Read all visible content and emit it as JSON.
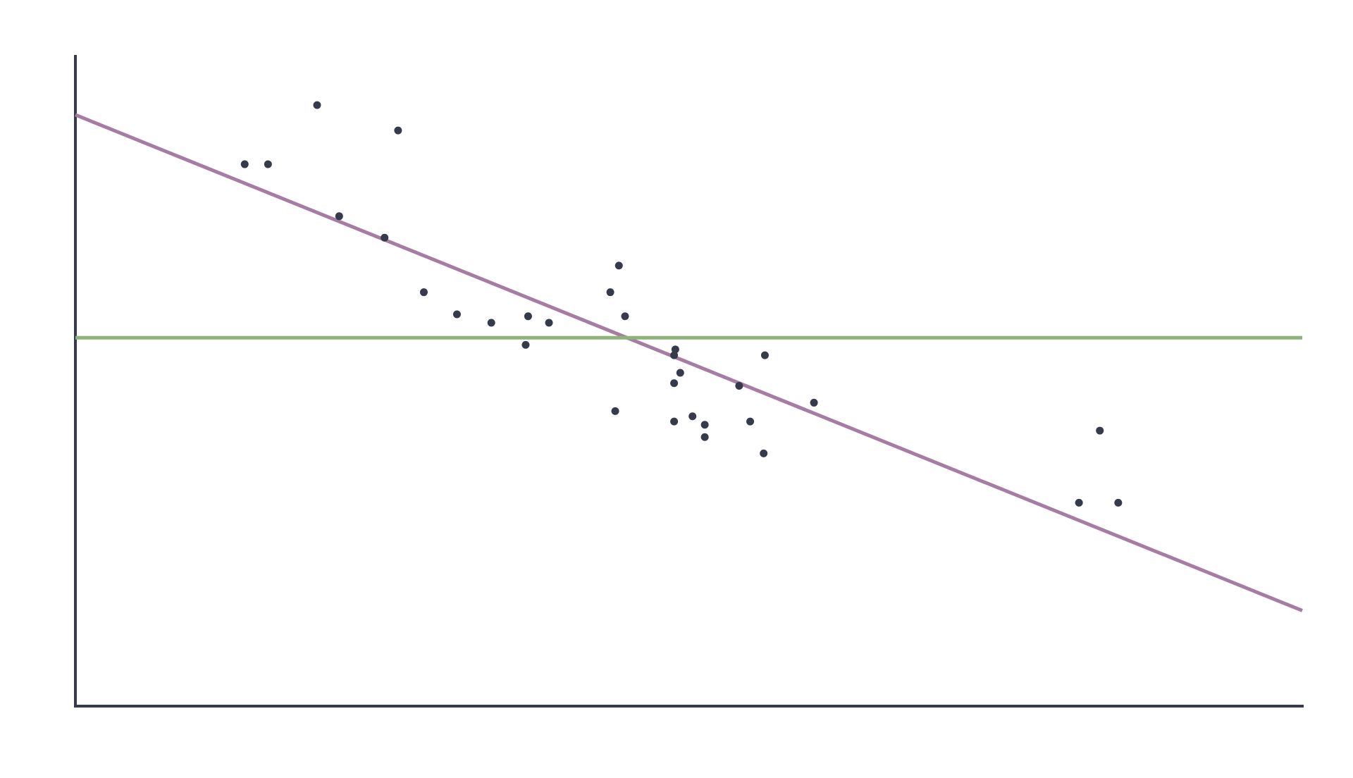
{
  "chart_data": {
    "type": "scatter",
    "title": "",
    "xlabel": "",
    "ylabel": "",
    "xlim": [
      0,
      100
    ],
    "ylim": [
      0,
      100
    ],
    "grid": false,
    "legend": "none",
    "points": [
      {
        "x": 13.8,
        "y": 83.4
      },
      {
        "x": 15.7,
        "y": 83.4
      },
      {
        "x": 19.7,
        "y": 92.5
      },
      {
        "x": 21.5,
        "y": 75.4
      },
      {
        "x": 25.2,
        "y": 72.1
      },
      {
        "x": 26.3,
        "y": 88.6
      },
      {
        "x": 28.4,
        "y": 63.7
      },
      {
        "x": 31.1,
        "y": 60.3
      },
      {
        "x": 33.9,
        "y": 59.0
      },
      {
        "x": 36.7,
        "y": 55.6
      },
      {
        "x": 36.9,
        "y": 60.0
      },
      {
        "x": 38.6,
        "y": 59.0
      },
      {
        "x": 43.6,
        "y": 63.7
      },
      {
        "x": 44.0,
        "y": 45.4
      },
      {
        "x": 44.3,
        "y": 67.8
      },
      {
        "x": 44.8,
        "y": 60.0
      },
      {
        "x": 48.8,
        "y": 54.0
      },
      {
        "x": 48.8,
        "y": 49.7
      },
      {
        "x": 48.8,
        "y": 43.8
      },
      {
        "x": 48.9,
        "y": 54.9
      },
      {
        "x": 49.3,
        "y": 51.3
      },
      {
        "x": 50.3,
        "y": 44.6
      },
      {
        "x": 51.3,
        "y": 43.3
      },
      {
        "x": 51.3,
        "y": 41.4
      },
      {
        "x": 54.1,
        "y": 49.3
      },
      {
        "x": 55.0,
        "y": 43.8
      },
      {
        "x": 56.1,
        "y": 38.9
      },
      {
        "x": 56.2,
        "y": 54.0
      },
      {
        "x": 60.2,
        "y": 46.7
      },
      {
        "x": 81.8,
        "y": 31.3
      },
      {
        "x": 83.5,
        "y": 42.4
      },
      {
        "x": 85.0,
        "y": 31.3
      }
    ],
    "lines": [
      {
        "kind": "trend",
        "from": [
          0,
          91.0
        ],
        "to": [
          100,
          14.7
        ],
        "color": "#a77ca3"
      },
      {
        "kind": "mean",
        "from": [
          0,
          56.7
        ],
        "to": [
          100,
          56.7
        ],
        "color": "#8db37a"
      }
    ],
    "colors": {
      "axis": "#363b4b",
      "point": "#363b4b"
    }
  }
}
